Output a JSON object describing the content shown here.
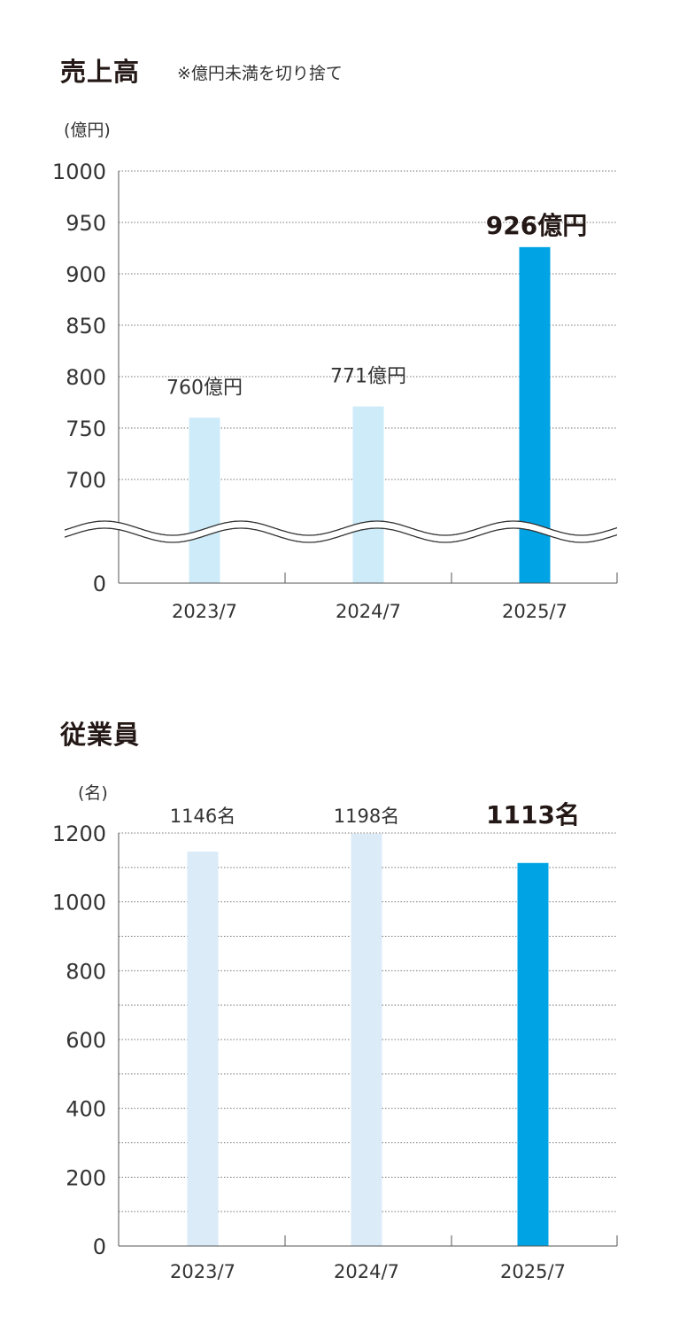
{
  "chart_data": [
    {
      "type": "bar",
      "title": "売上高",
      "note": "※億円未満を切り捨て",
      "unit_label": "(億円)",
      "categories": [
        "2023/7",
        "2024/7",
        "2025/7"
      ],
      "values": [
        760,
        771,
        926
      ],
      "data_labels": [
        "760億円",
        "771億円",
        "926億円"
      ],
      "yticks": [
        0,
        700,
        750,
        800,
        850,
        900,
        950,
        1000
      ],
      "ylim": [
        0,
        1000
      ],
      "axis_break": [
        0,
        650
      ],
      "grid": true,
      "colors": [
        "#cdebf8",
        "#cdebf8",
        "#00a3e4"
      ]
    },
    {
      "type": "bar",
      "title": "従業員",
      "unit_label": "(名)",
      "categories": [
        "2023/7",
        "2024/7",
        "2025/7"
      ],
      "values": [
        1146,
        1198,
        1113
      ],
      "data_labels": [
        "1146名",
        "1198名",
        "1113名"
      ],
      "yticks": [
        0,
        200,
        400,
        600,
        800,
        1000,
        1200
      ],
      "ylim": [
        0,
        1200
      ],
      "grid": true,
      "colors": [
        "#dbebf8",
        "#dbebf8",
        "#00a3e4"
      ]
    }
  ]
}
